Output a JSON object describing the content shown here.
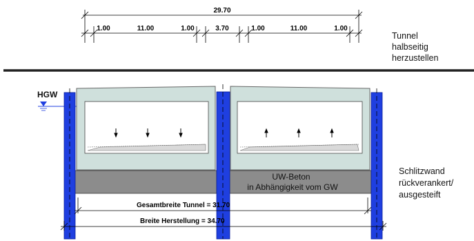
{
  "dimensions": {
    "total": "29.70",
    "segments": [
      "1.00",
      "11.00",
      "1.00",
      "3.70",
      "1.00",
      "11.00",
      "1.00"
    ]
  },
  "note_tunnel": [
    "Tunnel",
    "halbseitig",
    "herzustellen"
  ],
  "note_wall": [
    "Schlitzwand",
    "rückverankert/",
    "ausgesteift"
  ],
  "hgw_label": "HGW",
  "uw_beton": [
    "UW-Beton",
    "in Abhängigkeit vom GW"
  ],
  "gesamtbreite": "Gesamtbreite Tunnel = 31.70",
  "breite_herstellung": "Breite Herstellung = 34.70",
  "colors": {
    "wall_blue": "#1f3fe0",
    "tunnel_fill": "#cfe0dc",
    "uw_beton_fill": "#8c8c8c",
    "heavy_line": "#222222"
  }
}
